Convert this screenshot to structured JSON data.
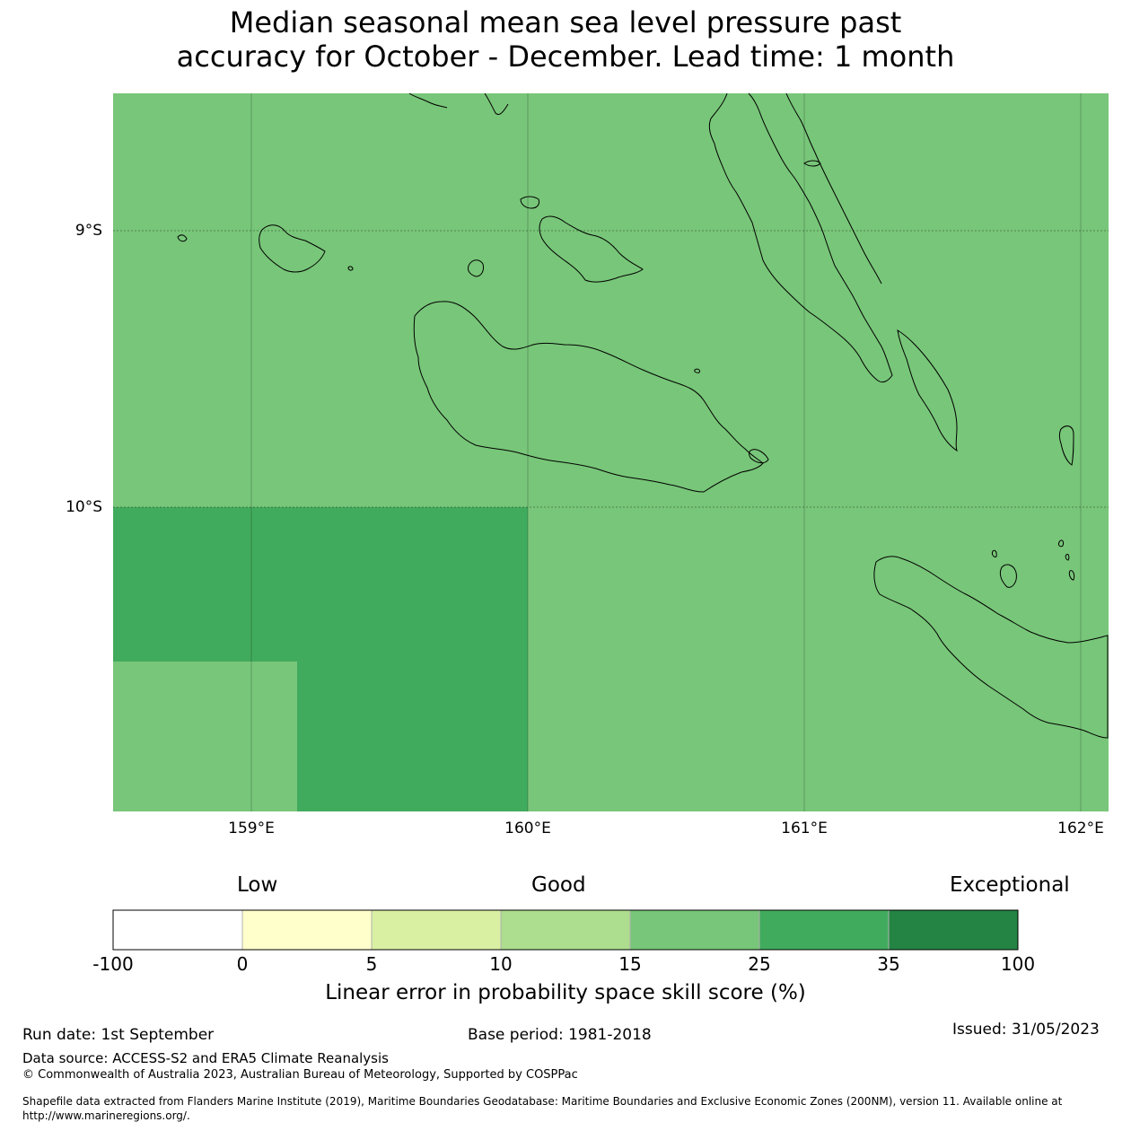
{
  "title_line1": "Median seasonal mean sea level pressure past",
  "title_line2": "accuracy for October - December. Lead time: 1 month",
  "map": {
    "background_color": "#78c679",
    "lat_labels": [
      "9°S",
      "10°S"
    ],
    "lon_labels": [
      "159°E",
      "160°E",
      "161°E",
      "162°E"
    ],
    "regions": [
      {
        "name": "skill-25-35",
        "color": "#41ab5d",
        "lon_range": [
          158.5,
          160.0
        ],
        "lat_range": [
          -10.0,
          -11.1
        ]
      },
      {
        "name": "skill-15-25-cutout",
        "color": "#78c679",
        "lon_range": [
          158.5,
          159.17
        ],
        "lat_range": [
          -10.56,
          -11.1
        ]
      }
    ]
  },
  "legend": {
    "qualitative": [
      "Low",
      "Good",
      "Exceptional"
    ],
    "bins": [
      {
        "from": "-100",
        "to": "0",
        "color": "#ffffff"
      },
      {
        "from": "0",
        "to": "5",
        "color": "#ffffcc"
      },
      {
        "from": "5",
        "to": "10",
        "color": "#d9f0a3"
      },
      {
        "from": "10",
        "to": "15",
        "color": "#addd8e"
      },
      {
        "from": "15",
        "to": "25",
        "color": "#78c679"
      },
      {
        "from": "25",
        "to": "35",
        "color": "#41ab5d"
      },
      {
        "from": "35",
        "to": "100",
        "color": "#238443"
      }
    ],
    "ticks": [
      "-100",
      "0",
      "5",
      "10",
      "15",
      "25",
      "35",
      "100"
    ],
    "label": "Linear error in probability space skill score (%)"
  },
  "footer": {
    "run_date": "Run date: 1st September",
    "base_period": "Base period: 1981-2018",
    "issued": "Issued: 31/05/2023",
    "data_source": "Data source: ACCESS-S2 and ERA5 Climate Reanalysis",
    "copyright": "© Commonwealth of Australia 2023, Australian Bureau of Meteorology, Supported by COSPPac",
    "shapefile_line1": "Shapefile data extracted from Flanders Marine Institute (2019), Maritime Boundaries Geodatabase: Maritime Boundaries and Exclusive Economic Zones (200NM), version 11. Available online at",
    "shapefile_line2": "http://www.marineregions.org/."
  }
}
